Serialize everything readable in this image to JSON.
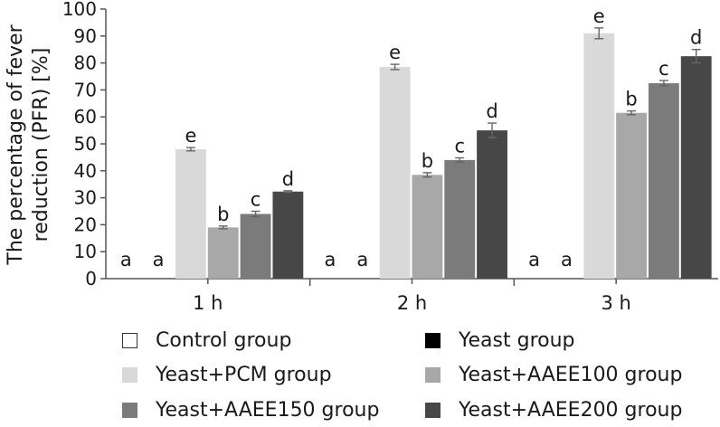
{
  "chart_data": {
    "type": "bar",
    "ylabel_line1": "The percentage of fever",
    "ylabel_line2": "reduction (PFR) [%]",
    "xlabel": "",
    "ylim": [
      0,
      100
    ],
    "yticks": [
      0,
      10,
      20,
      30,
      40,
      50,
      60,
      70,
      80,
      90,
      100
    ],
    "categories": [
      "1 h",
      "2 h",
      "3 h"
    ],
    "series": [
      {
        "name": "Control group",
        "color": "#ffffff",
        "values": [
          0,
          0,
          0
        ],
        "errors": [
          0,
          0,
          0
        ],
        "letters": [
          "a",
          "a",
          "a"
        ]
      },
      {
        "name": "Yeast group",
        "color": "#000000",
        "values": [
          0,
          0,
          0
        ],
        "errors": [
          0,
          0,
          0
        ],
        "letters": [
          "a",
          "a",
          "a"
        ]
      },
      {
        "name": "Yeast+PCM group",
        "color": "#d9d9d9",
        "values": [
          48,
          78.5,
          91
        ],
        "errors": [
          0.6,
          1.0,
          2.0
        ],
        "letters": [
          "e",
          "e",
          "e"
        ]
      },
      {
        "name": "Yeast+AAEE100 group",
        "color": "#a8a8a8",
        "values": [
          19,
          38.5,
          61.5
        ],
        "errors": [
          0.5,
          0.8,
          0.7
        ],
        "letters": [
          "b",
          "b",
          "b"
        ]
      },
      {
        "name": "Yeast+AAEE150 group",
        "color": "#7b7b7b",
        "values": [
          24,
          44,
          72.5
        ],
        "errors": [
          1.0,
          0.8,
          1.0
        ],
        "letters": [
          "c",
          "c",
          "c"
        ]
      },
      {
        "name": "Yeast+AAEE200 group",
        "color": "#474747",
        "values": [
          32.3,
          55,
          82.5
        ],
        "errors": [
          0.3,
          2.7,
          2.5
        ],
        "letters": [
          "d",
          "d",
          "d"
        ]
      }
    ],
    "legend_position": "bottom"
  }
}
